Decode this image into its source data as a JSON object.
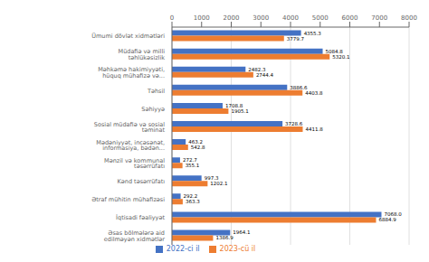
{
  "chart_data": {
    "type": "bar",
    "orientation": "horizontal",
    "categories": [
      "Ümumi dövlət xidmətləri",
      "Müdafiə və milli təhlükəsizlik",
      "Məhkəmə hakimiyyəti, hüquq mühafizə və...",
      "Təhsil",
      "Səhiyyə",
      "Sosial müdafiə və sosial təminat",
      "Mədəniyyət, incəsənət, informasiya, bədən...",
      "Mənzil və kommunal təsərrüfatı",
      "Kənd təsərrüfatı",
      "Ətraf mühitin mühafizəsi",
      "İqtisadi fəaliyyət",
      "Əsas bölmələrə aid edilməyən xidmətlər"
    ],
    "series": [
      {
        "name": "2022-ci il",
        "color": "#4472C4",
        "values": [
          4355.3,
          5084.8,
          2482.3,
          3886.6,
          1708.8,
          3728.6,
          463.2,
          272.7,
          997.3,
          292.2,
          7068.0,
          1964.1
        ],
        "value_labels": [
          "4355.3",
          "5084.8",
          "2482.3",
          "3886.6",
          "1708.8",
          "3728.6",
          "463.2",
          "272.7",
          "997.3",
          "292.2",
          "7068.0",
          "1964.1"
        ]
      },
      {
        "name": "2023-cü il",
        "color": "#ED7D31",
        "values": [
          3779.7,
          5320.1,
          2744.4,
          4403.8,
          1905.1,
          4411.8,
          542.8,
          355.1,
          1202.1,
          363.3,
          6884.9,
          1386.9
        ],
        "value_labels": [
          "3779.7",
          "5320.1",
          "2744.4",
          "4403.8",
          "1905.1",
          "4411.8",
          "542.8",
          "355.1",
          "1202.1",
          "363.3",
          "6884.9",
          "1386.9"
        ]
      }
    ],
    "xlim": [
      0,
      8000
    ],
    "xticks": [
      0,
      1000,
      2000,
      3000,
      4000,
      5000,
      6000,
      7000,
      8000
    ],
    "grid": true,
    "data_labels": true,
    "legend": "bottom"
  }
}
